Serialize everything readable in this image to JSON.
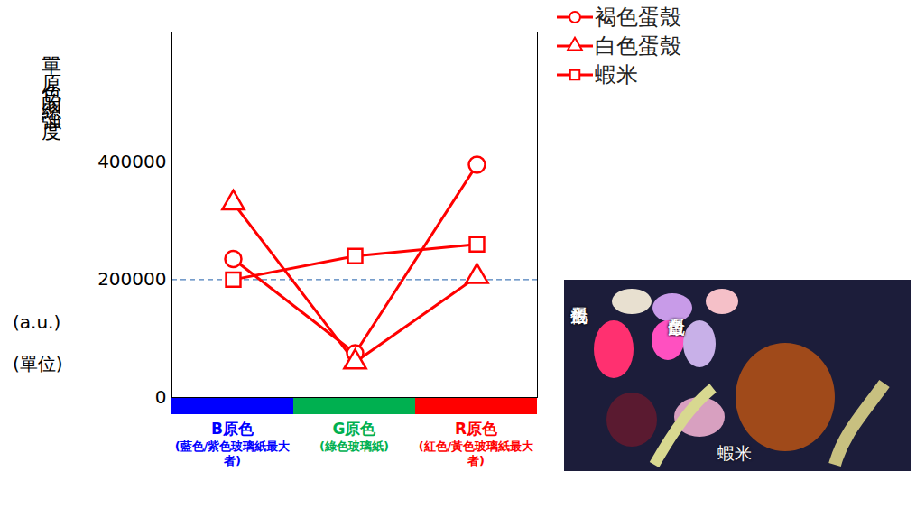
{
  "chart_data": {
    "type": "line",
    "ylabel": "單一原色的總強度 (a.u.) (單位)",
    "categories": [
      "B原色",
      "G原色",
      "R原色"
    ],
    "category_notes": [
      "(藍色/紫色玻璃紙最大者)",
      "(綠色玻璃紙)",
      "(紅色/黃色玻璃紙最大者)"
    ],
    "category_colors": [
      "#0000ff",
      "#00b050",
      "#ff0000"
    ],
    "series": [
      {
        "name": "褐色蛋殼",
        "color": "#ff0000",
        "marker": "circle",
        "values": [
          235000,
          75000,
          395000
        ]
      },
      {
        "name": "白色蛋殼",
        "color": "#ff0000",
        "marker": "triangle",
        "values": [
          330000,
          60000,
          205000
        ]
      },
      {
        "name": "蝦米",
        "color": "#ff0000",
        "marker": "square",
        "values": [
          200000,
          240000,
          260000
        ]
      }
    ],
    "ylim": [
      0,
      620000
    ],
    "yticks": [
      0,
      200000,
      400000
    ],
    "hline": 200000,
    "legend": "top right",
    "annotations": [
      "褐色蛋殼",
      "白色蛋殼",
      "蝦米"
    ]
  }
}
